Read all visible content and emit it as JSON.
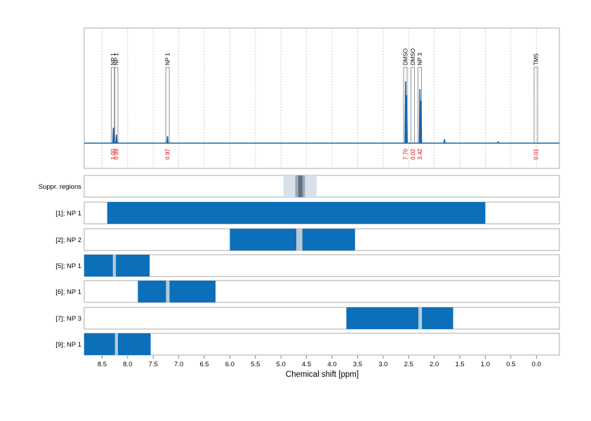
{
  "chart_data": {
    "type": "nmr_spectrum_with_regions",
    "xlabel": "Chemical shift [ppm]",
    "xlim": [
      8.85,
      -0.45
    ],
    "x_ticks": [
      "8.5",
      "8.0",
      "7.5",
      "7.0",
      "6.5",
      "6.0",
      "5.5",
      "5.0",
      "4.5",
      "4.0",
      "3.5",
      "3.0",
      "2.5",
      "2.0",
      "1.5",
      "1.0",
      "0.5",
      "0.0"
    ],
    "colors": {
      "spectrum": "#1565a8",
      "bar": "#0b6fba",
      "gap": "#b9c9d6",
      "suppr_light": "#d8e1ea",
      "suppr_mid": "#9aa8b6",
      "suppr_dark": "#5f6f7f",
      "integral": "#e00000",
      "grid": "#c0c0c0",
      "frame": "#aaaaaa"
    },
    "spectrum_peaks": [
      {
        "ppm": 8.28,
        "height": 0.2
      },
      {
        "ppm": 8.22,
        "height": 0.11
      },
      {
        "ppm": 7.22,
        "height": 0.09
      },
      {
        "ppm": 2.56,
        "height": 0.8
      },
      {
        "ppm": 2.54,
        "height": 0.62
      },
      {
        "ppm": 2.28,
        "height": 0.7
      },
      {
        "ppm": 2.26,
        "height": 0.55
      },
      {
        "ppm": 1.8,
        "height": 0.05
      },
      {
        "ppm": 0.75,
        "height": 0.015
      }
    ],
    "peak_annotations": [
      {
        "label": "NP 1",
        "ppm": 8.285
      },
      {
        "label": "NP 1",
        "ppm": 8.225
      },
      {
        "label": "NP 1",
        "ppm": 7.22
      },
      {
        "label": "DMSO",
        "ppm": 2.565
      },
      {
        "label": "DMSO",
        "ppm": 2.42
      },
      {
        "label": "NP 3",
        "ppm": 2.285
      },
      {
        "label": "TMS",
        "ppm": 0.01
      }
    ],
    "integrals": [
      {
        "value": "1.00",
        "ppm": 8.285
      },
      {
        "value": "0.99",
        "ppm": 8.225
      },
      {
        "value": "0.97",
        "ppm": 7.22
      },
      {
        "value": "7.70",
        "ppm": 2.565
      },
      {
        "value": "0.02",
        "ppm": 2.42
      },
      {
        "value": "3.42",
        "ppm": 2.285
      },
      {
        "value": "0.01",
        "ppm": 0.01
      }
    ],
    "suppression_regions": [
      {
        "from": 4.95,
        "to": 4.3,
        "shade": "light"
      },
      {
        "from": 4.72,
        "to": 4.53,
        "shade": "mid"
      },
      {
        "from": 4.66,
        "to": 4.58,
        "shade": "dark"
      }
    ],
    "region_rows": [
      {
        "label": "[1]; NP 1",
        "from": 8.4,
        "to": 1.0,
        "gap": null
      },
      {
        "label": "[2]; NP 2",
        "from": 6.0,
        "to": 3.55,
        "gap": [
          4.7,
          4.58
        ]
      },
      {
        "label": "[5]; NP 1",
        "from": 8.85,
        "to": 7.57,
        "gap": [
          8.29,
          8.23
        ]
      },
      {
        "label": "[6]; NP 1",
        "from": 7.8,
        "to": 6.28,
        "gap": [
          7.25,
          7.18
        ]
      },
      {
        "label": "[7]; NP 3",
        "from": 3.72,
        "to": 1.63,
        "gap": [
          2.31,
          2.24
        ]
      },
      {
        "label": "[9]; NP 1",
        "from": 8.85,
        "to": 7.55,
        "gap": [
          8.25,
          8.19
        ]
      }
    ],
    "suppr_row_label": "Suppr. regions"
  }
}
